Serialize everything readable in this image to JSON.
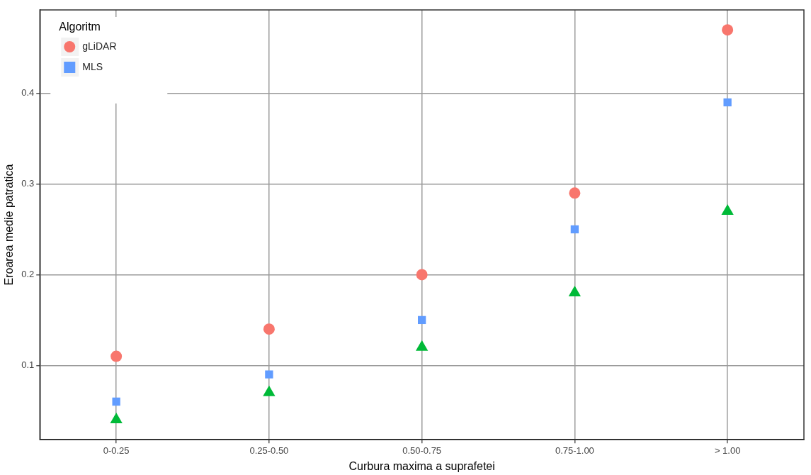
{
  "chart_data": {
    "type": "scatter",
    "xlabel": "Curbura maxima a suprafetei",
    "ylabel": "Eroarea medie patratica",
    "legend_title": "Algoritm",
    "categories": [
      "0-0.25",
      "0.25-0.50",
      "0.50-0.75",
      "0.75-1.00",
      "> 1.00"
    ],
    "series": [
      {
        "name": "gLiDAR",
        "color": "#f8766d",
        "marker": "circle",
        "values": [
          0.11,
          0.14,
          0.2,
          0.29,
          0.47
        ]
      },
      {
        "color": "#00ba38",
        "marker": "triangle",
        "values": [
          0.04,
          0.07,
          0.12,
          0.18,
          0.27
        ]
      },
      {
        "name": "MLS",
        "color": "#619cff",
        "marker": "square",
        "values": [
          0.06,
          0.09,
          0.15,
          0.25,
          0.39
        ]
      }
    ],
    "ylim": [
      0.018,
      0.492
    ],
    "yticks": [
      0.1,
      0.2,
      0.3,
      0.4
    ],
    "grid": true,
    "legend": "top left"
  }
}
